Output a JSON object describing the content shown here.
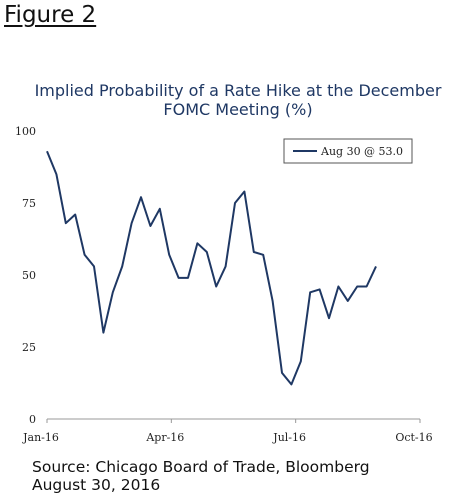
{
  "figure_label": "Figure 2",
  "source": {
    "line1": "Source: Chicago Board of Trade, Bloomberg",
    "line2": "August 30, 2016"
  },
  "chart_data": {
    "type": "line",
    "title_line1": "Implied Probability of a Rate Hike at the December",
    "title_line2": "FOMC Meeting (%)",
    "xlabel": "",
    "ylabel": "",
    "ylim": [
      0,
      100
    ],
    "yticks": [
      "0",
      "25",
      "50",
      "75",
      "100"
    ],
    "xticks": [
      "Jan-16",
      "Apr-16",
      "Jul-16",
      "Oct-16"
    ],
    "legend": {
      "label": "Aug 30 @ 53.0",
      "placement": "top-right",
      "boxed": true
    },
    "grid": false,
    "series": [
      {
        "name": "Aug 30 @ 53.0",
        "color": "#1f3864",
        "values": [
          93,
          85,
          68,
          71,
          57,
          53,
          30,
          44,
          53,
          68,
          77,
          67,
          73,
          57,
          49,
          49,
          61,
          58,
          46,
          53,
          75,
          79,
          58,
          57,
          41,
          16,
          12,
          20,
          44,
          45,
          35,
          46,
          41,
          46,
          46,
          53
        ]
      }
    ]
  }
}
